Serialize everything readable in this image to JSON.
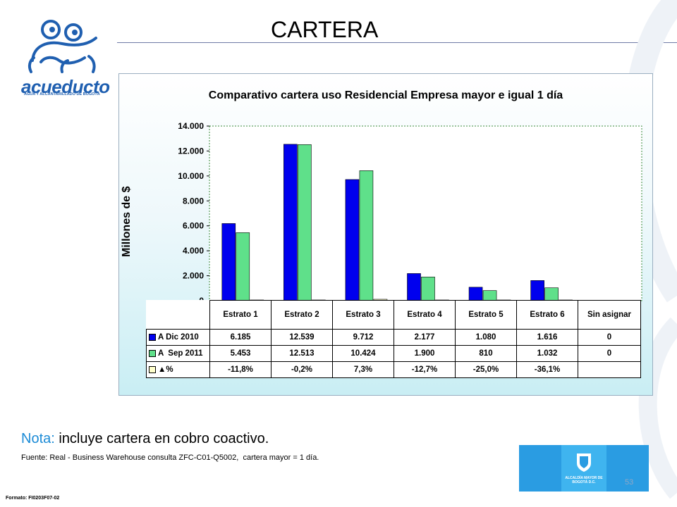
{
  "header": {
    "title": "CARTERA"
  },
  "logo": {
    "word": "acueducto",
    "tagline": "AGUA Y ALCANTARILLADO DE BOGOTÁ"
  },
  "chart_data": {
    "type": "bar",
    "title": "Comparativo cartera uso Residencial Empresa mayor e igual 1 día",
    "xlabel": "",
    "ylabel": "Millones de $",
    "ylim": [
      0,
      14000
    ],
    "yticks": [
      "0",
      "2.000",
      "4.000",
      "6.000",
      "8.000",
      "10.000",
      "12.000",
      "14.000"
    ],
    "categories": [
      "Estrato 1",
      "Estrato 2",
      "Estrato 3",
      "Estrato 4",
      "Estrato 5",
      "Estrato 6",
      "Sin asignar"
    ],
    "series": [
      {
        "name": "A Dic 2010",
        "color": "#0000ee",
        "values": [
          6185,
          12539,
          9712,
          2177,
          1080,
          1616,
          0
        ],
        "labels": [
          "6.185",
          "12.539",
          "9.712",
          "2.177",
          "1.080",
          "1.616",
          "0"
        ]
      },
      {
        "name": "A  Sep 2011",
        "color": "#5fe08a",
        "values": [
          5453,
          12513,
          10424,
          1900,
          810,
          1032,
          0
        ],
        "labels": [
          "5.453",
          "12.513",
          "10.424",
          "1.900",
          "810",
          "1.032",
          "0"
        ]
      },
      {
        "name": "▲%",
        "color": "#ffffcc",
        "values": [
          -11.8,
          -0.2,
          7.3,
          -12.7,
          -25.0,
          -36.1,
          null
        ],
        "labels": [
          "-11,8%",
          "-0,2%",
          "7,3%",
          "-12,7%",
          "-25,0%",
          "-36,1%",
          ""
        ]
      }
    ],
    "grid": false,
    "legend": "data-table"
  },
  "note": {
    "label": "Nota:",
    "text": " incluye cartera en cobro coactivo."
  },
  "source": "Fuente: Real - Business Warehouse consulta ZFC-C01-Q5002,  cartera mayor = 1 día.",
  "page_number": "53",
  "alcaldia": "ALCALDÍA MAYOR DE BOGOTÁ D.C.",
  "footer": "Formato: FI0203F07-02"
}
